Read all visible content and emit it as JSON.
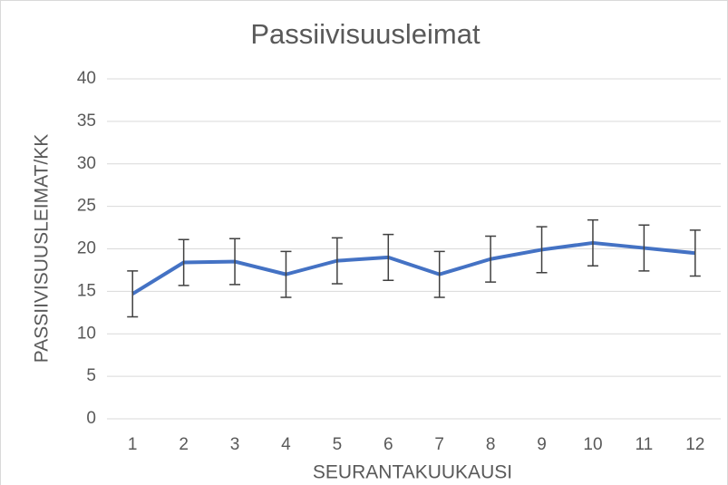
{
  "chart_data": {
    "type": "line",
    "title": "Passiivisuusleimat",
    "x_label": "SEURANTAKUUKAUSI",
    "y_label": "PASSIIVISUUSLEIMAT/KK",
    "categories": [
      "1",
      "2",
      "3",
      "4",
      "5",
      "6",
      "7",
      "8",
      "9",
      "10",
      "11",
      "12"
    ],
    "series": [
      {
        "name": "Passiivisuusleimat",
        "color": "#4472c4",
        "values": [
          14.7,
          18.4,
          18.5,
          17.0,
          18.6,
          19.0,
          17.0,
          18.8,
          19.9,
          20.7,
          20.1,
          19.5
        ],
        "errors": [
          2.7,
          2.7,
          2.7,
          2.7,
          2.7,
          2.7,
          2.7,
          2.7,
          2.7,
          2.7,
          2.7,
          2.7
        ]
      }
    ],
    "ylim": [
      0,
      40
    ],
    "yticks": [
      0,
      5,
      10,
      15,
      20,
      25,
      30,
      35,
      40
    ],
    "grid": true
  }
}
